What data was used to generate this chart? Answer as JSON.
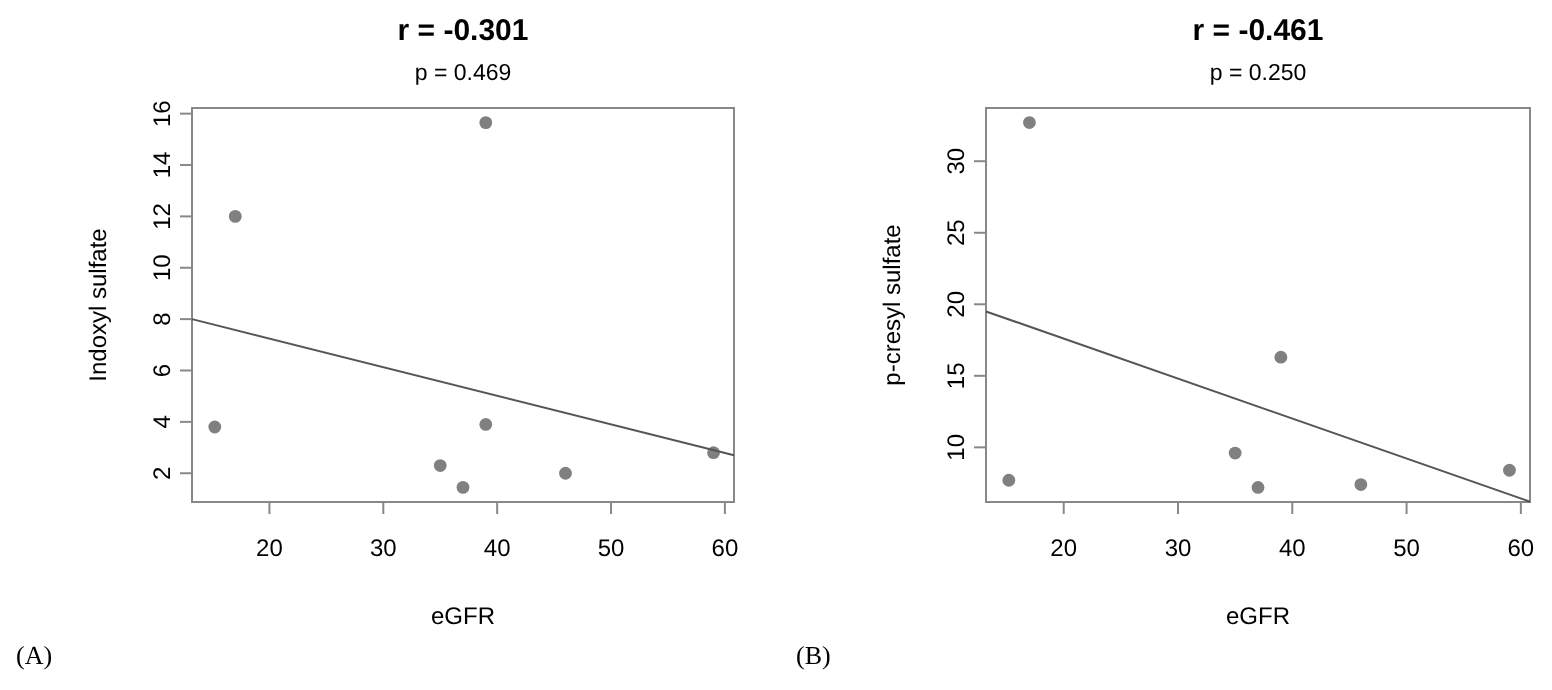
{
  "chart_data": [
    {
      "type": "scatter",
      "title": "r = -0.301",
      "subtitle": "p = 0.469",
      "xlabel": "eGFR",
      "ylabel": "Indoxyl sulfate",
      "annotations": [
        "(A)"
      ],
      "xlim": [
        13.2,
        60.8
      ],
      "xticks": [
        20,
        30,
        40,
        50,
        60
      ],
      "ylim": [
        0.88,
        16.22
      ],
      "yticks": [
        2,
        4,
        6,
        8,
        10,
        12,
        14,
        16
      ],
      "grid": false,
      "series": [
        {
          "marker": "circle",
          "color": "#808080",
          "x": [
            15.2,
            17,
            35,
            37,
            39,
            39,
            46,
            59
          ],
          "values": [
            3.8,
            12.0,
            2.3,
            1.45,
            15.65,
            3.9,
            2.0,
            2.8
          ]
        },
        {
          "type": "line",
          "color": "#555555",
          "x": [
            13.2,
            60.8
          ],
          "values": [
            8.0,
            2.7
          ]
        }
      ]
    },
    {
      "type": "scatter",
      "title": "r = -0.461",
      "subtitle": "p = 0.250",
      "xlabel": "eGFR",
      "ylabel": "p-cresyl sulfate",
      "annotations": [
        "(B)"
      ],
      "xlim": [
        13.2,
        60.8
      ],
      "xticks": [
        20,
        30,
        40,
        50,
        60
      ],
      "ylim": [
        6.18,
        33.72
      ],
      "yticks": [
        10,
        15,
        20,
        25,
        30
      ],
      "grid": false,
      "series": [
        {
          "marker": "circle",
          "color": "#808080",
          "x": [
            15.2,
            17,
            35,
            37,
            39,
            46,
            59
          ],
          "values": [
            7.7,
            32.7,
            9.6,
            7.2,
            16.3,
            7.4,
            8.4
          ]
        },
        {
          "type": "line",
          "color": "#555555",
          "x": [
            13.2,
            60.8
          ],
          "values": [
            19.5,
            6.2
          ]
        }
      ]
    }
  ]
}
